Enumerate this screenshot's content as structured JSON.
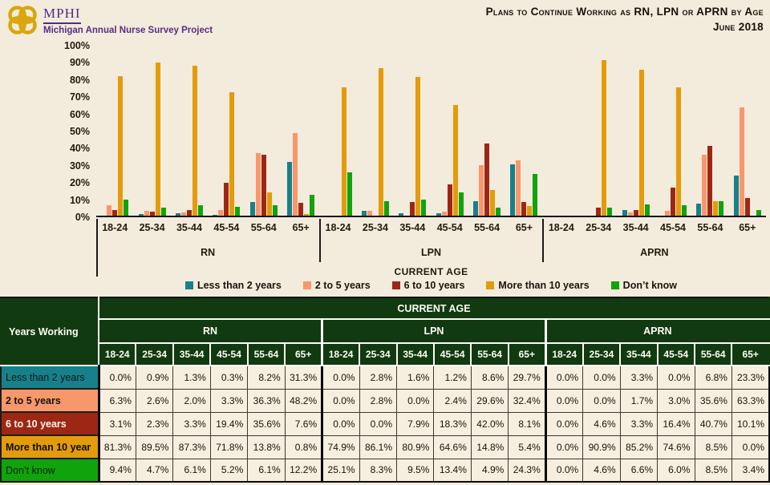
{
  "header": {
    "logo_org": "MPHI",
    "logo_project": "Michigan Annual Nurse Survey Project",
    "title_line1": "Plans to Continue Working as RN, LPN or APRN by Age",
    "title_line2": "June 2018"
  },
  "colors": {
    "page_bg": "#F3EBDC",
    "table_header_bg": "#123A10",
    "cell_bg": "#F6EEDF",
    "axis_line": "#151515",
    "accent_purple": "#4F2C84",
    "logo_gold": "#D9A70B",
    "row_label_text": [
      "#101814",
      "#131313",
      "#FBF6EA",
      "#0E0B03",
      "#06230A"
    ]
  },
  "chart_data": {
    "type": "bar",
    "title": "Plans to Continue Working as RN, LPN or APRN by Age",
    "subtitle": "June 2018",
    "xlabel": "CURRENT AGE",
    "ylabel": "",
    "ylim": [
      0,
      100
    ],
    "ytick_step": 10,
    "ytick_suffix": "%",
    "grid": false,
    "legend_position": "bottom",
    "panels": [
      "RN",
      "LPN",
      "APRN"
    ],
    "categories": [
      "18-24",
      "25-34",
      "35-44",
      "45-54",
      "55-64",
      "65+"
    ],
    "series": [
      {
        "name": "Less than 2 years",
        "color": "#17808A",
        "values": {
          "RN": [
            0.0,
            0.9,
            1.3,
            0.3,
            8.2,
            31.3
          ],
          "LPN": [
            0.0,
            2.8,
            1.6,
            1.2,
            8.6,
            29.7
          ],
          "APRN": [
            0.0,
            0.0,
            3.3,
            0.0,
            6.8,
            23.3
          ]
        }
      },
      {
        "name": "2 to 5 years",
        "color": "#F8976C",
        "values": {
          "RN": [
            6.3,
            2.6,
            2.0,
            3.3,
            36.3,
            48.2
          ],
          "LPN": [
            0.0,
            2.8,
            0.0,
            2.4,
            29.6,
            32.4
          ],
          "APRN": [
            0.0,
            0.0,
            1.7,
            3.0,
            35.6,
            63.3
          ]
        }
      },
      {
        "name": "6 to 10 years",
        "color": "#9D2715",
        "values": {
          "RN": [
            3.1,
            2.3,
            3.3,
            19.4,
            35.6,
            7.6
          ],
          "LPN": [
            0.0,
            0.0,
            7.9,
            18.3,
            42.0,
            8.1
          ],
          "APRN": [
            0.0,
            4.6,
            3.3,
            16.4,
            40.7,
            10.1
          ]
        }
      },
      {
        "name": "More than 10 years",
        "color": "#E49B0B",
        "values": {
          "RN": [
            81.3,
            89.5,
            87.3,
            71.8,
            13.8,
            0.8
          ],
          "LPN": [
            74.9,
            86.1,
            80.9,
            64.6,
            14.8,
            5.4
          ],
          "APRN": [
            0.0,
            90.9,
            85.2,
            74.6,
            8.5,
            0.0
          ]
        }
      },
      {
        "name": "Don’t know",
        "color": "#10A30C",
        "values": {
          "RN": [
            9.4,
            4.7,
            6.1,
            5.2,
            6.1,
            12.2
          ],
          "LPN": [
            25.1,
            8.3,
            9.5,
            13.4,
            4.9,
            24.3
          ],
          "APRN": [
            0.0,
            4.6,
            6.6,
            6.0,
            8.5,
            3.4
          ]
        }
      }
    ]
  },
  "table": {
    "corner_label": "Years Working",
    "top_header": "CURRENT AGE",
    "group_headers": [
      "RN",
      "LPN",
      "APRN"
    ],
    "age_headers": [
      "18-24",
      "25-34",
      "35-44",
      "45-54",
      "55-64",
      "65+"
    ],
    "row_labels": [
      "Less than 2 years",
      "2 to 5 years",
      "6 to 10 years",
      "More than 10 year",
      "Don’t know"
    ],
    "value_suffix": "%"
  }
}
